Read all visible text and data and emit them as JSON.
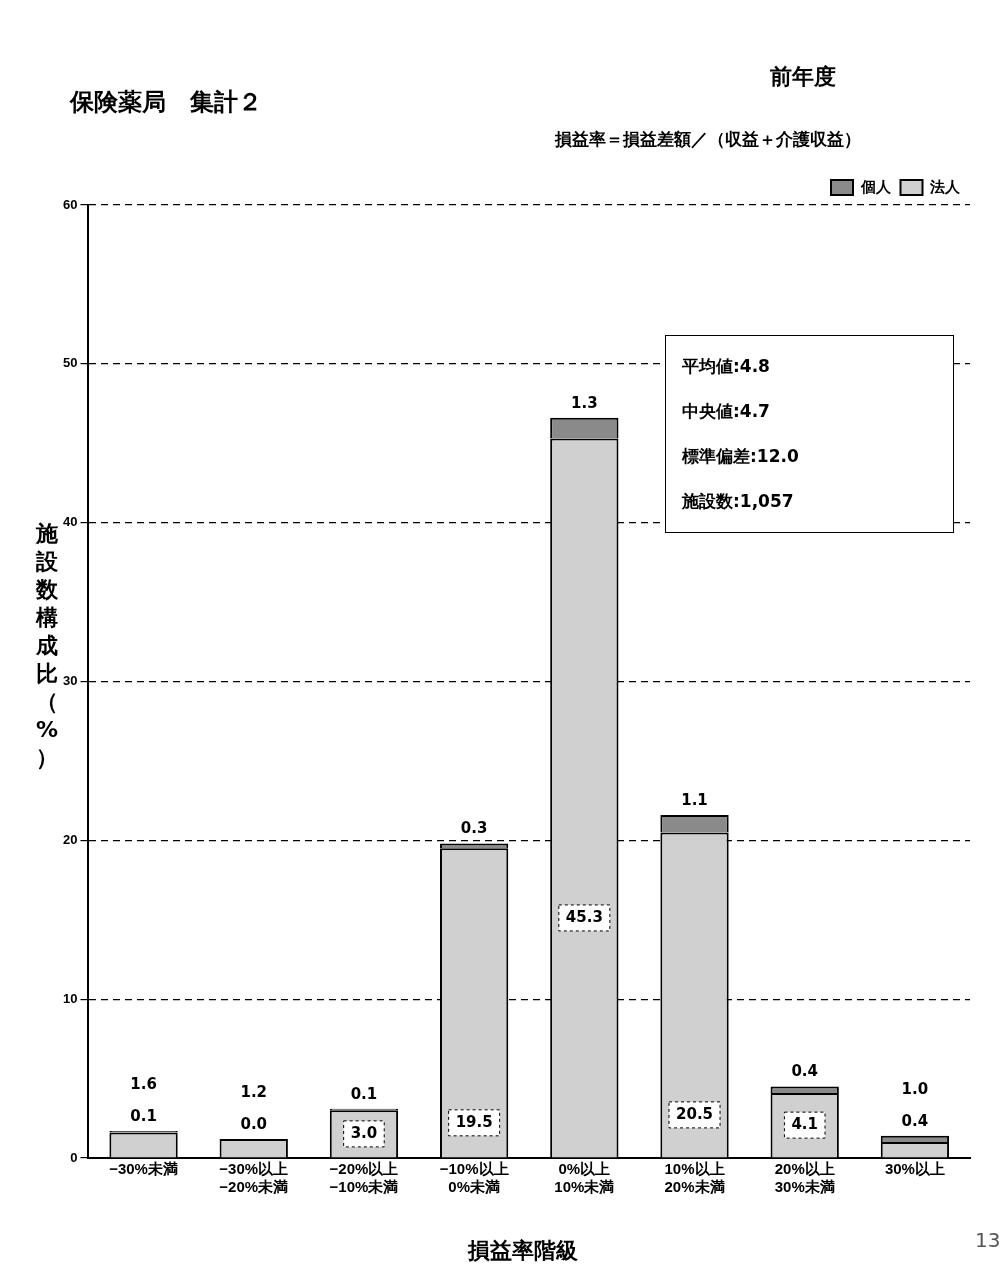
{
  "chart_data": {
    "type": "bar",
    "title": "保険薬局　集計２",
    "subtitle": "前年度",
    "xlabel": "損益率階級",
    "ylabel": "施設数構成比（%）",
    "annotations": [
      "損益率＝損益差額／（収益＋介護収益）",
      "平均値:4.8",
      "中央値:4.7",
      "標準偏差:12.0",
      "施設数:1,057",
      "13"
    ],
    "categories": [
      "−30%未満",
      "−30%以上\n−20%未満",
      "−20%以上\n−10%未満",
      "−10%以上\n0%未満",
      "0%以上\n10%未満",
      "10%以上\n20%未満",
      "20%以上\n30%未満",
      "30%以上"
    ],
    "stacked": true,
    "series": [
      {
        "name": "法人",
        "color": "#d0d0d0",
        "values": [
          1.6,
          1.2,
          3.0,
          19.5,
          45.3,
          20.5,
          4.1,
          1.0
        ],
        "value_labels": [
          "1.6",
          "1.2",
          "3.0",
          "19.5",
          "45.3",
          "20.5",
          "4.1",
          "1.0"
        ]
      },
      {
        "name": "個人",
        "color": "#8a8a8a",
        "values": [
          0.1,
          0.0,
          0.1,
          0.3,
          1.3,
          1.1,
          0.4,
          0.4
        ],
        "value_labels": [
          "0.1",
          "0.0",
          "0.1",
          "0.3",
          "1.3",
          "1.1",
          "0.4",
          "0.4"
        ]
      }
    ],
    "ylim": [
      0,
      60
    ],
    "yticks": [
      0,
      10,
      20,
      30,
      40,
      50,
      60
    ],
    "grid": "y",
    "legend": "top right"
  }
}
